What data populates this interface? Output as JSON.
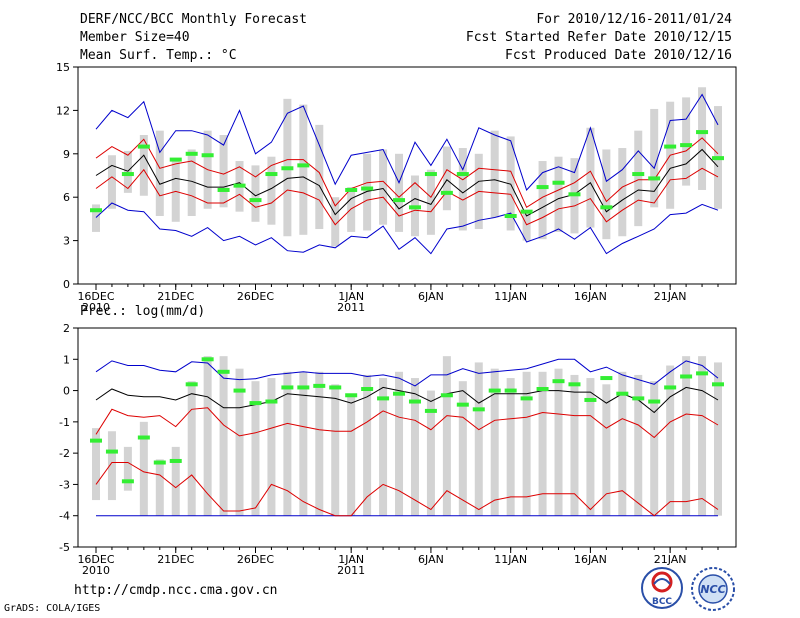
{
  "header": {
    "title": "DERF/NCC/BCC Monthly Forecast",
    "member_size": "Member Size=40",
    "variable": "Mean Surf. Temp.: °C",
    "period": "For 2010/12/16-2011/01/24",
    "fcst_started": "Fcst Started Refer Date 2010/12/15",
    "fcst_produced": "Fcst Produced Date 2010/12/16"
  },
  "footer": {
    "url": "http://cmdp.ncc.cma.gov.cn",
    "credit": "GrADS: COLA/IGES",
    "logo_bcc": "BCC",
    "logo_ncc": "NCC"
  },
  "colors": {
    "box": "#d3d3d3",
    "mean": "#000000",
    "inner_band": "#dd0000",
    "outer_band": "#0000cc",
    "obs": "#33ee33"
  },
  "chart_data": [
    {
      "type": "line",
      "title": "Mean Surf. Temp.: °C",
      "ylabel": "°C",
      "ylim": [
        0,
        15
      ],
      "yticks": [
        0,
        3,
        6,
        9,
        12,
        15
      ],
      "x_tick_labels": [
        {
          "day": 1,
          "label": "16DEC",
          "sub": "2010"
        },
        {
          "day": 6,
          "label": "21DEC"
        },
        {
          "day": 11,
          "label": "26DEC"
        },
        {
          "day": 17,
          "label": "1JAN",
          "sub": "2011"
        },
        {
          "day": 22,
          "label": "6JAN"
        },
        {
          "day": 27,
          "label": "11JAN"
        },
        {
          "day": 32,
          "label": "16JAN"
        },
        {
          "day": 37,
          "label": "21JAN"
        }
      ],
      "days": [
        1,
        2,
        3,
        4,
        5,
        6,
        7,
        8,
        9,
        10,
        11,
        12,
        13,
        14,
        15,
        16,
        17,
        18,
        19,
        20,
        21,
        22,
        23,
        24,
        25,
        26,
        27,
        28,
        29,
        30,
        31,
        32,
        33,
        34,
        35,
        36,
        37,
        38,
        39,
        40
      ],
      "series": [
        {
          "name": "box_low",
          "values": [
            3.6,
            5.2,
            6.3,
            6.1,
            4.7,
            4.3,
            4.7,
            5.2,
            5.3,
            5.0,
            4.3,
            4.1,
            3.3,
            3.4,
            3.8,
            2.6,
            3.6,
            3.7,
            4.1,
            3.6,
            3.3,
            3.4,
            5.1,
            3.7,
            3.8,
            4.6,
            3.7,
            3.0,
            3.1,
            3.6,
            3.5,
            3.9,
            3.1,
            3.3,
            4.0,
            5.3,
            5.2,
            6.8,
            6.5,
            5.2
          ]
        },
        {
          "name": "box_high",
          "values": [
            5.5,
            8.9,
            9.2,
            10.3,
            10.6,
            8.7,
            9.3,
            10.6,
            10.3,
            8.5,
            8.2,
            8.8,
            12.8,
            12.4,
            11.0,
            6.0,
            6.7,
            9.0,
            9.3,
            9.0,
            7.5,
            7.9,
            9.5,
            9.4,
            9.0,
            10.6,
            10.2,
            5.1,
            8.5,
            8.8,
            8.7,
            10.8,
            9.3,
            9.4,
            10.6,
            12.1,
            12.6,
            12.9,
            13.6,
            12.3
          ]
        },
        {
          "name": "outer_high",
          "values": [
            10.7,
            12.0,
            11.5,
            12.6,
            9.1,
            10.6,
            10.6,
            10.3,
            9.6,
            12.0,
            9.0,
            9.8,
            11.8,
            12.3,
            9.6,
            6.9,
            8.9,
            9.1,
            9.3,
            7.0,
            9.8,
            8.2,
            10.0,
            7.9,
            10.8,
            10.3,
            9.9,
            6.5,
            7.7,
            8.1,
            7.7,
            10.8,
            7.1,
            7.9,
            9.2,
            8.0,
            11.3,
            11.4,
            13.1,
            11.0
          ]
        },
        {
          "name": "inner_high",
          "values": [
            8.7,
            9.5,
            8.9,
            10.0,
            8.0,
            8.3,
            8.5,
            7.9,
            7.6,
            8.1,
            7.4,
            8.2,
            8.6,
            8.6,
            7.7,
            5.4,
            6.6,
            7.0,
            7.1,
            6.0,
            7.0,
            6.0,
            7.9,
            7.2,
            8.0,
            7.9,
            7.8,
            5.3,
            6.0,
            6.5,
            7.0,
            7.8,
            5.7,
            6.7,
            7.2,
            7.2,
            8.9,
            9.2,
            10.1,
            9.0
          ]
        },
        {
          "name": "mean",
          "values": [
            7.5,
            8.2,
            7.8,
            8.9,
            6.9,
            7.3,
            7.1,
            6.7,
            6.7,
            7.0,
            6.1,
            6.6,
            7.3,
            7.4,
            6.8,
            4.8,
            5.9,
            6.4,
            6.6,
            5.2,
            5.9,
            5.5,
            7.2,
            6.3,
            7.1,
            7.2,
            6.9,
            4.7,
            5.3,
            5.9,
            6.2,
            7.0,
            5.0,
            5.8,
            6.5,
            6.4,
            8.0,
            8.3,
            9.3,
            8.1
          ]
        },
        {
          "name": "inner_low",
          "values": [
            6.6,
            7.4,
            6.6,
            7.9,
            6.1,
            6.4,
            6.1,
            5.6,
            5.6,
            6.2,
            5.3,
            5.6,
            6.5,
            6.3,
            5.8,
            4.1,
            5.2,
            5.8,
            6.0,
            4.7,
            5.1,
            5.0,
            6.4,
            5.8,
            6.4,
            6.3,
            6.2,
            4.1,
            4.6,
            5.2,
            5.4,
            5.9,
            4.3,
            5.1,
            5.8,
            5.6,
            7.2,
            7.3,
            8.0,
            7.4
          ]
        },
        {
          "name": "outer_low",
          "values": [
            4.6,
            5.6,
            5.1,
            5.0,
            3.8,
            3.7,
            3.3,
            3.9,
            3.0,
            3.3,
            2.7,
            3.2,
            2.3,
            2.2,
            2.7,
            2.5,
            3.3,
            3.2,
            4.0,
            2.4,
            3.2,
            2.1,
            3.8,
            4.0,
            4.4,
            4.6,
            4.9,
            2.9,
            3.3,
            3.8,
            3.1,
            3.9,
            2.1,
            2.8,
            3.3,
            3.8,
            4.8,
            4.9,
            5.5,
            5.1
          ]
        },
        {
          "name": "obs",
          "values": [
            5.1,
            null,
            7.6,
            9.5,
            null,
            8.6,
            9.0,
            8.9,
            6.5,
            6.8,
            5.8,
            7.6,
            8.0,
            8.2,
            null,
            null,
            6.5,
            6.6,
            null,
            5.8,
            5.3,
            7.6,
            6.3,
            7.6,
            null,
            null,
            4.7,
            5.0,
            6.7,
            7.0,
            6.2,
            null,
            5.3,
            null,
            7.6,
            7.3,
            9.5,
            9.6,
            10.5,
            8.7
          ]
        }
      ]
    },
    {
      "type": "line",
      "title": "Prec.: log(mm/d)",
      "ylabel": "log(mm/d)",
      "ylim": [
        -5,
        2
      ],
      "yticks": [
        -5,
        -4,
        -3,
        -2,
        -1,
        0,
        1,
        2
      ],
      "x_tick_labels": [
        {
          "day": 1,
          "label": "16DEC",
          "sub": "2010"
        },
        {
          "day": 6,
          "label": "21DEC"
        },
        {
          "day": 11,
          "label": "26DEC"
        },
        {
          "day": 17,
          "label": "1JAN",
          "sub": "2011"
        },
        {
          "day": 22,
          "label": "6JAN"
        },
        {
          "day": 27,
          "label": "11JAN"
        },
        {
          "day": 32,
          "label": "16JAN"
        },
        {
          "day": 37,
          "label": "21JAN"
        }
      ],
      "days": [
        1,
        2,
        3,
        4,
        5,
        6,
        7,
        8,
        9,
        10,
        11,
        12,
        13,
        14,
        15,
        16,
        17,
        18,
        19,
        20,
        21,
        22,
        23,
        24,
        25,
        26,
        27,
        28,
        29,
        30,
        31,
        32,
        33,
        34,
        35,
        36,
        37,
        38,
        39,
        40
      ],
      "series": [
        {
          "name": "box_low",
          "values": [
            -3.5,
            -3.5,
            -3.2,
            -4.0,
            -4.0,
            -4.0,
            -4.0,
            -4.0,
            -4.0,
            -4.0,
            -4.0,
            -4.0,
            -4.0,
            -4.0,
            -4.0,
            -4.0,
            -4.0,
            -4.0,
            -4.0,
            -4.0,
            -4.0,
            -4.0,
            -4.0,
            -4.0,
            -4.0,
            -4.0,
            -4.0,
            -4.0,
            -4.0,
            -4.0,
            -4.0,
            -4.0,
            -4.0,
            -4.0,
            -4.0,
            -4.0,
            -4.0,
            -4.0,
            -4.0,
            -4.0
          ]
        },
        {
          "name": "box_high",
          "values": [
            -1.2,
            -1.3,
            -1.8,
            -1.0,
            -2.2,
            -1.8,
            0.3,
            1.1,
            1.1,
            0.7,
            0.3,
            0.4,
            0.6,
            0.6,
            0.6,
            0.2,
            -0.1,
            0.5,
            0.4,
            0.6,
            0.4,
            0.0,
            1.1,
            0.3,
            0.9,
            0.7,
            0.4,
            0.6,
            0.6,
            0.7,
            0.5,
            0.4,
            0.2,
            0.6,
            0.5,
            0.3,
            0.8,
            1.1,
            1.1,
            0.9
          ]
        },
        {
          "name": "outer_high",
          "values": [
            0.6,
            0.95,
            0.8,
            0.8,
            0.65,
            0.6,
            0.92,
            0.88,
            0.4,
            0.35,
            0.38,
            0.5,
            0.55,
            0.6,
            0.55,
            0.55,
            0.55,
            0.45,
            0.5,
            0.4,
            0.15,
            0.5,
            0.5,
            0.7,
            0.55,
            0.6,
            0.65,
            0.7,
            0.85,
            1.0,
            1.0,
            0.6,
            0.75,
            0.5,
            0.35,
            0.2,
            0.6,
            0.95,
            0.8,
            0.4
          ]
        },
        {
          "name": "mean",
          "values": [
            -0.3,
            0.05,
            -0.15,
            -0.2,
            -0.2,
            -0.3,
            -0.1,
            -0.2,
            -0.55,
            -0.55,
            -0.45,
            -0.35,
            -0.1,
            -0.15,
            -0.2,
            -0.25,
            -0.4,
            -0.2,
            0.1,
            0.0,
            -0.1,
            -0.35,
            -0.1,
            0.0,
            -0.4,
            -0.1,
            -0.1,
            -0.1,
            0.0,
            0.0,
            -0.05,
            -0.05,
            -0.4,
            -0.1,
            -0.3,
            -0.7,
            -0.2,
            0.1,
            0.0,
            -0.3
          ]
        },
        {
          "name": "inner_high",
          "values": [
            -1.4,
            -0.6,
            -0.8,
            -0.85,
            -0.8,
            -1.15,
            -0.6,
            -0.55,
            -1.1,
            -1.45,
            -1.35,
            -1.2,
            -1.05,
            -1.15,
            -1.25,
            -1.3,
            -1.3,
            -1.0,
            -0.65,
            -0.85,
            -0.95,
            -1.25,
            -0.8,
            -0.85,
            -1.25,
            -0.95,
            -0.9,
            -0.85,
            -0.7,
            -0.75,
            -0.8,
            -0.8,
            -1.2,
            -0.9,
            -1.1,
            -1.5,
            -1.0,
            -0.75,
            -0.8,
            -1.1
          ]
        },
        {
          "name": "inner_low",
          "values": [
            -3.0,
            -2.3,
            -2.3,
            -2.6,
            -2.7,
            -3.1,
            -2.7,
            -3.3,
            -3.85,
            -3.85,
            -3.75,
            -3.0,
            -3.2,
            -3.55,
            -3.8,
            -4.0,
            -4.0,
            -3.4,
            -3.0,
            -3.2,
            -3.5,
            -3.8,
            -3.2,
            -3.5,
            -3.8,
            -3.5,
            -3.4,
            -3.4,
            -3.3,
            -3.3,
            -3.3,
            -3.8,
            -3.3,
            -3.2,
            -3.6,
            -4.0,
            -3.55,
            -3.55,
            -3.45,
            -3.8
          ]
        },
        {
          "name": "outer_low",
          "values": [
            -4.0,
            -4.0,
            -4.0,
            -4.0,
            -4.0,
            -4.0,
            -4.0,
            -4.0,
            -4.0,
            -4.0,
            -4.0,
            -4.0,
            -4.0,
            -4.0,
            -4.0,
            -4.0,
            -4.0,
            -4.0,
            -4.0,
            -4.0,
            -4.0,
            -4.0,
            -4.0,
            -4.0,
            -4.0,
            -4.0,
            -4.0,
            -4.0,
            -4.0,
            -4.0,
            -4.0,
            -4.0,
            -4.0,
            -4.0,
            -4.0,
            -4.0,
            -4.0,
            -4.0,
            -4.0,
            -4.0
          ]
        },
        {
          "name": "obs",
          "values": [
            -1.6,
            -1.95,
            -2.9,
            -1.5,
            -2.3,
            -2.25,
            0.2,
            1.0,
            0.6,
            0.0,
            -0.4,
            -0.35,
            0.1,
            0.1,
            0.15,
            0.1,
            -0.15,
            0.05,
            -0.25,
            -0.1,
            -0.35,
            -0.65,
            -0.15,
            -0.45,
            -0.6,
            0.0,
            0.0,
            -0.25,
            0.05,
            0.3,
            0.2,
            -0.3,
            0.4,
            -0.1,
            -0.25,
            -0.35,
            0.1,
            0.45,
            0.55,
            0.2
          ]
        }
      ]
    }
  ]
}
